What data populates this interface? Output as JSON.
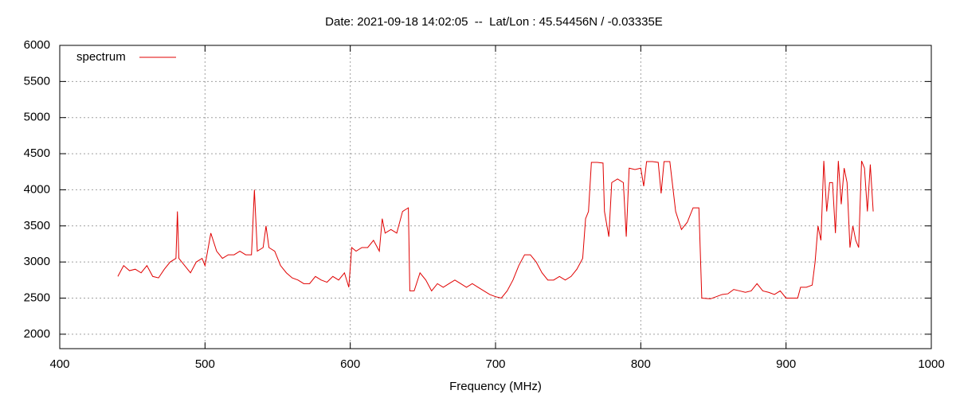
{
  "chart_data": {
    "type": "line",
    "title": "Date: 2021-09-18 14:02:05  --  Lat/Lon : 45.54456N / -0.03335E",
    "x_label": "Frequency (MHz)",
    "xlim": [
      400,
      1000
    ],
    "xticks": [
      400,
      500,
      600,
      700,
      800,
      900,
      1000
    ],
    "ylim": [
      1800,
      6000
    ],
    "yticks": [
      2000,
      2500,
      3000,
      3500,
      4000,
      4500,
      5000,
      5500,
      6000
    ],
    "grid": true,
    "legend": "top-left",
    "x": [
      440,
      444,
      448,
      452,
      456,
      460,
      464,
      468,
      472,
      476,
      480,
      481,
      482,
      486,
      490,
      494,
      498,
      500,
      504,
      508,
      512,
      516,
      520,
      524,
      528,
      532,
      534,
      536,
      540,
      542,
      544,
      548,
      552,
      556,
      560,
      564,
      568,
      572,
      576,
      580,
      584,
      588,
      592,
      596,
      599,
      601,
      604,
      608,
      612,
      616,
      620,
      622,
      624,
      628,
      632,
      636,
      640,
      641,
      644,
      648,
      652,
      656,
      660,
      664,
      668,
      672,
      676,
      680,
      684,
      688,
      692,
      696,
      700,
      704,
      708,
      712,
      716,
      720,
      724,
      728,
      732,
      736,
      740,
      744,
      748,
      752,
      756,
      760,
      762,
      764,
      766,
      770,
      774,
      775,
      778,
      780,
      784,
      788,
      790,
      792,
      796,
      800,
      802,
      804,
      808,
      812,
      814,
      816,
      820,
      824,
      828,
      832,
      836,
      840,
      842,
      848,
      852,
      856,
      860,
      864,
      868,
      872,
      876,
      880,
      884,
      888,
      892,
      896,
      900,
      904,
      908,
      910,
      914,
      918,
      920,
      922,
      924,
      926,
      928,
      930,
      932,
      934,
      936,
      938,
      940,
      942,
      944,
      946,
      948,
      950,
      952,
      954,
      956,
      958,
      960
    ],
    "series": [
      {
        "name": "spectrum",
        "color": "#e00000",
        "values": [
          2800,
          2950,
          2880,
          2900,
          2850,
          2950,
          2800,
          2780,
          2900,
          3000,
          3050,
          3700,
          3050,
          2950,
          2850,
          3000,
          3050,
          2950,
          3400,
          3150,
          3050,
          3100,
          3100,
          3150,
          3100,
          3100,
          4000,
          3150,
          3200,
          3500,
          3200,
          3150,
          2950,
          2850,
          2780,
          2750,
          2700,
          2700,
          2800,
          2750,
          2720,
          2800,
          2750,
          2850,
          2650,
          3200,
          3150,
          3200,
          3200,
          3300,
          3150,
          3600,
          3400,
          3450,
          3400,
          3700,
          3750,
          2600,
          2600,
          2850,
          2750,
          2600,
          2700,
          2650,
          2700,
          2750,
          2700,
          2650,
          2700,
          2650,
          2600,
          2550,
          2520,
          2500,
          2600,
          2750,
          2950,
          3100,
          3100,
          3000,
          2850,
          2750,
          2750,
          2800,
          2750,
          2800,
          2900,
          3050,
          3600,
          3700,
          4380,
          4380,
          4370,
          3700,
          3350,
          4100,
          4150,
          4100,
          3350,
          4300,
          4280,
          4300,
          4050,
          4390,
          4390,
          4380,
          3950,
          4390,
          4390,
          3700,
          3450,
          3550,
          3750,
          3750,
          2500,
          2490,
          2520,
          2550,
          2560,
          2620,
          2600,
          2580,
          2600,
          2700,
          2600,
          2580,
          2550,
          2600,
          2500,
          2500,
          2500,
          2650,
          2650,
          2680,
          3000,
          3500,
          3300,
          4400,
          3700,
          4100,
          4100,
          3400,
          4400,
          3800,
          4300,
          4100,
          3200,
          3500,
          3300,
          3200,
          4400,
          4300,
          3700,
          4350,
          3700
        ]
      }
    ]
  }
}
